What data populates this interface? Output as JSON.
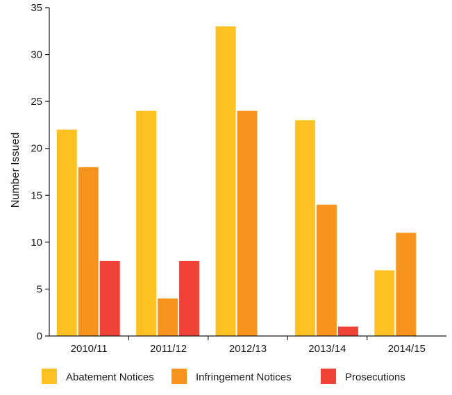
{
  "chart_data": {
    "type": "bar",
    "title": "",
    "xlabel": "",
    "ylabel": "Number Issued",
    "ylim": [
      0,
      35
    ],
    "yticks": [
      0,
      5,
      10,
      15,
      20,
      25,
      30,
      35
    ],
    "grid": false,
    "legend_position": "bottom",
    "categories": [
      "2010/11",
      "2011/12",
      "2012/13",
      "2013/14",
      "2014/15"
    ],
    "series": [
      {
        "name": "Abatement Notices",
        "color": "#FDC124",
        "values": [
          22,
          24,
          33,
          23,
          7
        ]
      },
      {
        "name": "Infringement Notices",
        "color": "#F7941D",
        "values": [
          18,
          4,
          24,
          14,
          11
        ]
      },
      {
        "name": "Prosecutions",
        "color": "#EF4136",
        "values": [
          8,
          8,
          0,
          1,
          0
        ]
      }
    ]
  }
}
